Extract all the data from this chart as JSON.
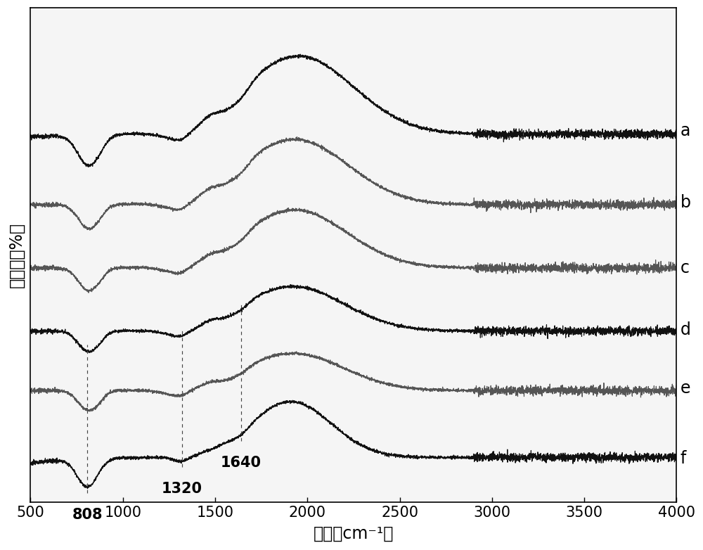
{
  "xmin": 500,
  "xmax": 4000,
  "xlabel": "波数（cm⁻¹）",
  "ylabel": "透过率（%）",
  "labels": [
    "a",
    "b",
    "c",
    "d",
    "e",
    "f"
  ],
  "colors": [
    "#111111",
    "#555555",
    "#555555",
    "#111111",
    "#555555",
    "#111111"
  ],
  "offsets": [
    4.8,
    3.85,
    3.0,
    2.15,
    1.35,
    0.45
  ],
  "vlines": [
    808,
    1320,
    1640
  ],
  "vline_labels": [
    "808",
    "1320",
    "1640"
  ],
  "background_color": "#f5f5f5",
  "tick_fontsize": 15,
  "label_fontsize": 17,
  "anno_fontsize": 15
}
